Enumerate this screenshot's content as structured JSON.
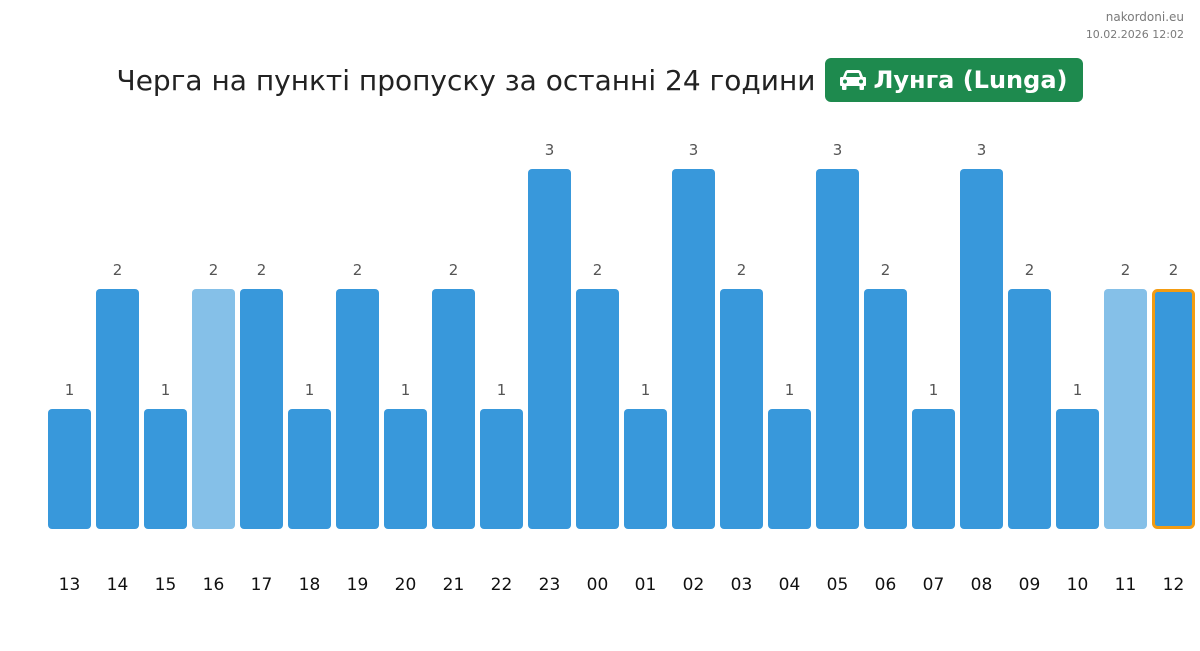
{
  "site": {
    "domain": "nakordoni.eu",
    "timestamp": "10.02.2026 12:02"
  },
  "header": {
    "title": "Черга на пункті пропуску за останні 24 години",
    "checkpoint": "Лунга (Lunga)",
    "badge_icon": "car-icon"
  },
  "colors": {
    "bar": "#3898db",
    "bar_light": "#85c0e8",
    "highlight_border": "#f39c12",
    "badge_bg": "#1e8a4e"
  },
  "chart_data": {
    "type": "bar",
    "categories": [
      "13",
      "14",
      "15",
      "16",
      "17",
      "18",
      "19",
      "20",
      "21",
      "22",
      "23",
      "00",
      "01",
      "02",
      "03",
      "04",
      "05",
      "06",
      "07",
      "08",
      "09",
      "10",
      "11",
      "12"
    ],
    "values": [
      1,
      2,
      1,
      2,
      2,
      1,
      2,
      1,
      2,
      1,
      3,
      2,
      1,
      3,
      2,
      1,
      3,
      2,
      1,
      3,
      2,
      1,
      2,
      2
    ],
    "light_bars": [
      "16",
      "11"
    ],
    "highlighted": "12",
    "ylim": [
      0,
      3
    ],
    "grid": false,
    "data_labels": true
  }
}
